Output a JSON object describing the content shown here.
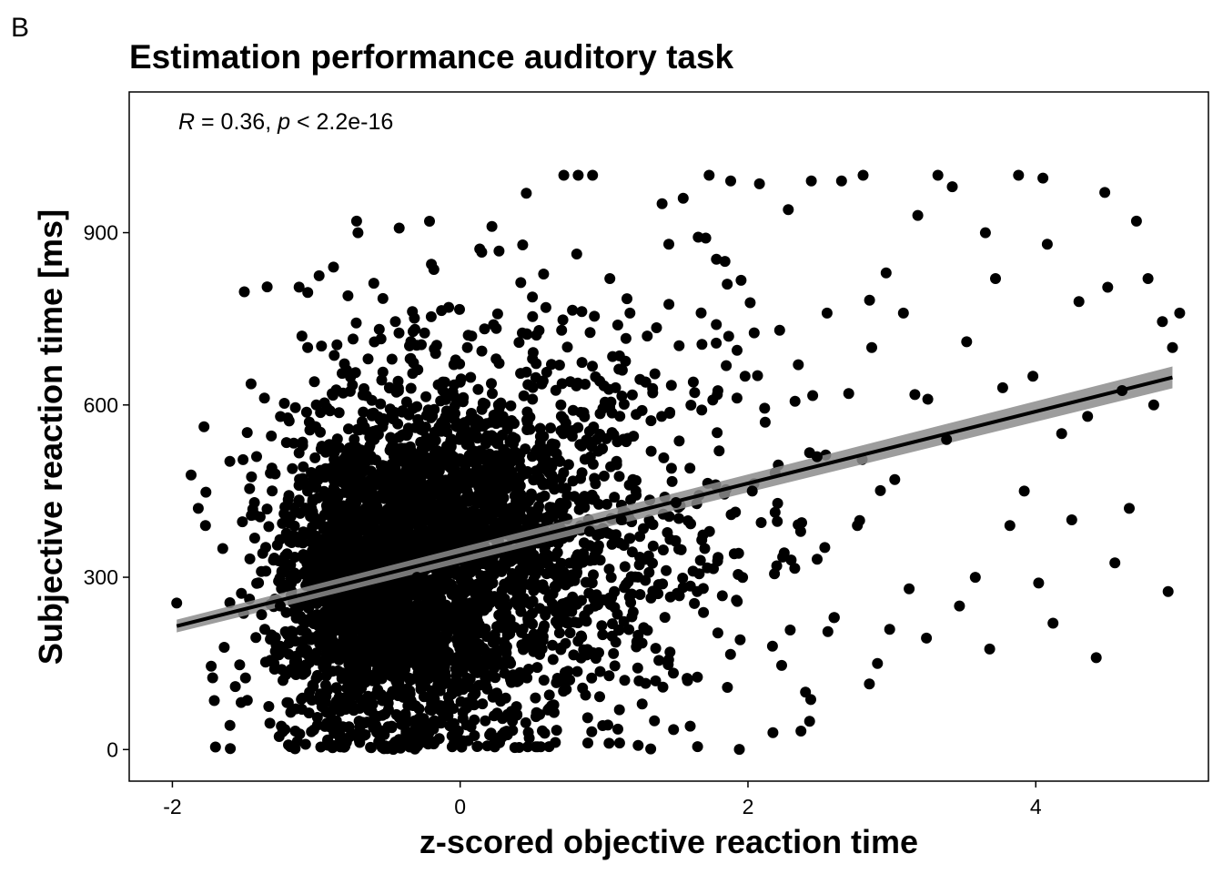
{
  "panel_label": "B",
  "chart_data": {
    "type": "scatter",
    "title": "Estimation performance auditory task",
    "xlabel": "z-scored objective reaction time",
    "ylabel": "Subjective  reaction time [ms]",
    "xlim": [
      -2.3,
      5.2
    ],
    "ylim": [
      -55,
      1145
    ],
    "x_ticks": [
      -2,
      0,
      2,
      4
    ],
    "x_tick_labels": [
      "-2",
      "0",
      "2",
      "4"
    ],
    "y_ticks": [
      0,
      300,
      600,
      900
    ],
    "y_tick_labels": [
      "0",
      "300",
      "600",
      "900"
    ],
    "grid": false,
    "legend": "none",
    "annotation": {
      "r_symbol": "R",
      "r_text": " = 0.36, ",
      "p_symbol": "p",
      "p_text": " < 2.2e-16"
    },
    "regression": {
      "x_start": -1.97,
      "x_end": 4.95,
      "y_start": 215,
      "y_end": 648
    },
    "marker_color": "#000000",
    "ribbon_color": "#8c8c8c",
    "points": [
      {
        "x": -1.97,
        "y": 255
      },
      {
        "x": -1.87,
        "y": 478
      },
      {
        "x": -1.82,
        "y": 420
      },
      {
        "x": -1.78,
        "y": 562
      },
      {
        "x": -1.77,
        "y": 390
      },
      {
        "x": -1.73,
        "y": 145
      },
      {
        "x": -1.72,
        "y": 125
      },
      {
        "x": -1.65,
        "y": 350
      },
      {
        "x": -1.64,
        "y": 178
      },
      {
        "x": -1.6,
        "y": 42
      },
      {
        "x": -1.52,
        "y": 272
      },
      {
        "x": -1.5,
        "y": 797
      },
      {
        "x": -1.48,
        "y": 552
      },
      {
        "x": -1.45,
        "y": 475
      },
      {
        "x": -1.43,
        "y": 430
      },
      {
        "x": -1.42,
        "y": 195
      },
      {
        "x": -1.39,
        "y": 405
      },
      {
        "x": -1.38,
        "y": 235
      },
      {
        "x": -1.36,
        "y": 612
      },
      {
        "x": -1.33,
        "y": 75
      },
      {
        "x": -1.29,
        "y": 140
      },
      {
        "x": -1.25,
        "y": 250
      },
      {
        "x": -1.22,
        "y": 310
      },
      {
        "x": -1.2,
        "y": 200
      },
      {
        "x": -1.18,
        "y": 5
      },
      {
        "x": -1.15,
        "y": 335
      },
      {
        "x": -1.12,
        "y": 460
      },
      {
        "x": -1.1,
        "y": 720
      },
      {
        "x": -1.06,
        "y": 700
      },
      {
        "x": -1.02,
        "y": 110
      },
      {
        "x": -1.0,
        "y": 600
      },
      {
        "x": -0.98,
        "y": 825
      },
      {
        "x": -0.93,
        "y": 220
      },
      {
        "x": -0.91,
        "y": 520
      },
      {
        "x": -0.88,
        "y": 840
      },
      {
        "x": -0.86,
        "y": 50
      },
      {
        "x": -0.82,
        "y": 655
      },
      {
        "x": -0.8,
        "y": 480
      },
      {
        "x": -0.78,
        "y": 790
      },
      {
        "x": -0.76,
        "y": 345
      },
      {
        "x": -0.73,
        "y": 95
      },
      {
        "x": -0.72,
        "y": 920
      },
      {
        "x": -0.71,
        "y": 900
      },
      {
        "x": -0.69,
        "y": 560
      },
      {
        "x": -0.66,
        "y": 250
      },
      {
        "x": -0.64,
        "y": 680
      },
      {
        "x": -0.6,
        "y": 812
      },
      {
        "x": -0.58,
        "y": 30
      },
      {
        "x": -0.55,
        "y": 715
      },
      {
        "x": -0.5,
        "y": 410
      },
      {
        "x": -0.47,
        "y": 170
      },
      {
        "x": -0.45,
        "y": 745
      },
      {
        "x": -0.4,
        "y": 590
      },
      {
        "x": -0.38,
        "y": 60
      },
      {
        "x": -0.33,
        "y": 655
      },
      {
        "x": -0.3,
        "y": 300
      },
      {
        "x": -0.27,
        "y": 705
      },
      {
        "x": -0.2,
        "y": 845
      },
      {
        "x": -0.15,
        "y": 135
      },
      {
        "x": -0.12,
        "y": 640
      },
      {
        "x": -0.08,
        "y": 770
      },
      {
        "x": -0.02,
        "y": 30
      },
      {
        "x": 0.05,
        "y": 700
      },
      {
        "x": 0.08,
        "y": 720
      },
      {
        "x": 0.15,
        "y": 866
      },
      {
        "x": 0.18,
        "y": 110
      },
      {
        "x": 0.25,
        "y": 680
      },
      {
        "x": 0.27,
        "y": 868
      },
      {
        "x": 0.31,
        "y": 520
      },
      {
        "x": 0.35,
        "y": 150
      },
      {
        "x": 0.42,
        "y": 655
      },
      {
        "x": 0.48,
        "y": 20
      },
      {
        "x": 0.52,
        "y": 410
      },
      {
        "x": 0.58,
        "y": 828
      },
      {
        "x": 0.62,
        "y": 95
      },
      {
        "x": 0.7,
        "y": 600
      },
      {
        "x": 0.72,
        "y": 1000
      },
      {
        "x": 0.75,
        "y": 240
      },
      {
        "x": 0.78,
        "y": 765
      },
      {
        "x": 0.82,
        "y": 1000
      },
      {
        "x": 0.9,
        "y": 380
      },
      {
        "x": 0.92,
        "y": 1000
      },
      {
        "x": 0.95,
        "y": 540
      },
      {
        "x": 0.99,
        "y": 200
      },
      {
        "x": 1.04,
        "y": 820
      },
      {
        "x": 1.08,
        "y": 630
      },
      {
        "x": 1.12,
        "y": 400
      },
      {
        "x": 1.18,
        "y": 760
      },
      {
        "x": 1.25,
        "y": 270
      },
      {
        "x": 1.3,
        "y": 720
      },
      {
        "x": 1.35,
        "y": 50
      },
      {
        "x": 1.4,
        "y": 580
      },
      {
        "x": 1.45,
        "y": 880
      },
      {
        "x": 1.5,
        "y": 430
      },
      {
        "x": 1.55,
        "y": 960
      },
      {
        "x": 1.58,
        "y": 120
      },
      {
        "x": 1.62,
        "y": 640
      },
      {
        "x": 1.65,
        "y": 5
      },
      {
        "x": 1.7,
        "y": 350
      },
      {
        "x": 1.73,
        "y": 1000
      },
      {
        "x": 1.78,
        "y": 740
      },
      {
        "x": 1.8,
        "y": 520
      },
      {
        "x": 1.84,
        "y": 850
      },
      {
        "x": 1.88,
        "y": 990
      },
      {
        "x": 1.92,
        "y": 260
      },
      {
        "x": 1.98,
        "y": 650
      },
      {
        "x": 2.03,
        "y": 450
      },
      {
        "x": 2.08,
        "y": 985
      },
      {
        "x": 2.12,
        "y": 570
      },
      {
        "x": 2.17,
        "y": 180
      },
      {
        "x": 2.22,
        "y": 730
      },
      {
        "x": 2.28,
        "y": 940
      },
      {
        "x": 2.3,
        "y": 330
      },
      {
        "x": 2.35,
        "y": 670
      },
      {
        "x": 2.4,
        "y": 100
      },
      {
        "x": 2.44,
        "y": 990
      },
      {
        "x": 2.48,
        "y": 510
      },
      {
        "x": 2.55,
        "y": 760
      },
      {
        "x": 2.6,
        "y": 230
      },
      {
        "x": 2.65,
        "y": 990
      },
      {
        "x": 2.7,
        "y": 620
      },
      {
        "x": 2.76,
        "y": 390
      },
      {
        "x": 2.8,
        "y": 1000
      },
      {
        "x": 2.86,
        "y": 700
      },
      {
        "x": 2.9,
        "y": 150
      },
      {
        "x": 2.96,
        "y": 830
      },
      {
        "x": 3.02,
        "y": 470
      },
      {
        "x": 3.08,
        "y": 760
      },
      {
        "x": 3.12,
        "y": 280
      },
      {
        "x": 3.18,
        "y": 930
      },
      {
        "x": 3.25,
        "y": 610
      },
      {
        "x": 3.32,
        "y": 1000
      },
      {
        "x": 3.38,
        "y": 540
      },
      {
        "x": 3.42,
        "y": 980
      },
      {
        "x": 3.47,
        "y": 250
      },
      {
        "x": 3.52,
        "y": 710
      },
      {
        "x": 3.58,
        "y": 300
      },
      {
        "x": 3.65,
        "y": 900
      },
      {
        "x": 3.68,
        "y": 175
      },
      {
        "x": 3.72,
        "y": 820
      },
      {
        "x": 3.77,
        "y": 630
      },
      {
        "x": 3.82,
        "y": 390
      },
      {
        "x": 3.88,
        "y": 1000
      },
      {
        "x": 3.92,
        "y": 450
      },
      {
        "x": 3.98,
        "y": 650
      },
      {
        "x": 4.02,
        "y": 290
      },
      {
        "x": 4.05,
        "y": 995
      },
      {
        "x": 4.08,
        "y": 880
      },
      {
        "x": 4.12,
        "y": 220
      },
      {
        "x": 4.18,
        "y": 550
      },
      {
        "x": 4.25,
        "y": 400
      },
      {
        "x": 4.3,
        "y": 780
      },
      {
        "x": 4.36,
        "y": 580
      },
      {
        "x": 4.42,
        "y": 160
      },
      {
        "x": 4.48,
        "y": 970
      },
      {
        "x": 4.5,
        "y": 805
      },
      {
        "x": 4.55,
        "y": 325
      },
      {
        "x": 4.6,
        "y": 625
      },
      {
        "x": 4.65,
        "y": 420
      },
      {
        "x": 4.7,
        "y": 920
      },
      {
        "x": 4.78,
        "y": 820
      },
      {
        "x": 4.82,
        "y": 600
      },
      {
        "x": 4.88,
        "y": 745
      },
      {
        "x": 4.92,
        "y": 275
      },
      {
        "x": 4.95,
        "y": 700
      },
      {
        "x": 5.0,
        "y": 760
      }
    ],
    "density_clusters": [
      {
        "cx": -0.45,
        "cy": 320,
        "sx": 0.38,
        "sy": 150,
        "n": 1700
      },
      {
        "cx": 0.1,
        "cy": 380,
        "sx": 0.5,
        "sy": 160,
        "n": 900
      },
      {
        "cx": -0.75,
        "cy": 250,
        "sx": 0.3,
        "sy": 140,
        "n": 600
      },
      {
        "cx": 0.6,
        "cy": 330,
        "sx": 0.45,
        "sy": 180,
        "n": 350
      },
      {
        "cx": 1.3,
        "cy": 420,
        "sx": 0.7,
        "sy": 220,
        "n": 260
      }
    ]
  }
}
